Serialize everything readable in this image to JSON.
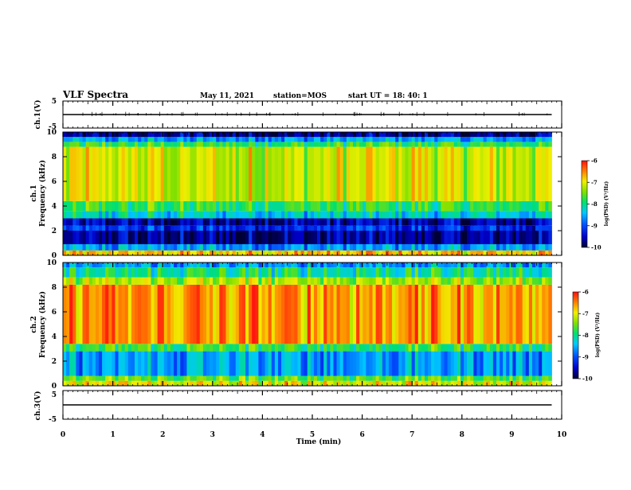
{
  "header": {
    "title": "VLF Spectra",
    "date": "May 11, 2021",
    "station": "station=MOS",
    "start_ut": "start  UT =   18: 40: 1"
  },
  "chart_data": [
    {
      "type": "line",
      "panel": "ch1-waveform",
      "ylabel": "ch.1(V)",
      "yticks": [
        "5",
        "-5"
      ],
      "ylim": [
        -5,
        5
      ],
      "x": [
        0,
        9.8
      ],
      "values": [
        0,
        0
      ]
    },
    {
      "type": "heatmap",
      "panel": "ch1-spectrogram",
      "ylabel_line1": "ch.1",
      "ylabel_line2": "Frequency (kHz)",
      "yticks": [
        "0",
        "2",
        "4",
        "6",
        "8",
        "10"
      ],
      "ylim": [
        0,
        10
      ],
      "xlim": [
        0,
        9.8
      ],
      "colorbar": {
        "ticks": [
          "-6",
          "-7",
          "-8",
          "-9",
          "-10"
        ],
        "label": "log(PSD) (V²/Hz)",
        "range": [
          -10,
          -6
        ]
      },
      "bands": [
        {
          "from_khz": 0.0,
          "to_khz": 0.4,
          "level": -6.8
        },
        {
          "from_khz": 0.4,
          "to_khz": 0.9,
          "level": -8.6
        },
        {
          "from_khz": 0.9,
          "to_khz": 2.0,
          "level": -9.7
        },
        {
          "from_khz": 2.0,
          "to_khz": 2.4,
          "level": -9.2
        },
        {
          "from_khz": 2.4,
          "to_khz": 3.0,
          "level": -9.6
        },
        {
          "from_khz": 3.0,
          "to_khz": 3.6,
          "level": -8.3
        },
        {
          "from_khz": 3.6,
          "to_khz": 4.4,
          "level": -7.8
        },
        {
          "from_khz": 4.4,
          "to_khz": 8.8,
          "level": -7.1
        },
        {
          "from_khz": 8.8,
          "to_khz": 9.2,
          "level": -7.8
        },
        {
          "from_khz": 9.2,
          "to_khz": 9.6,
          "level": -8.6
        },
        {
          "from_khz": 9.6,
          "to_khz": 10.0,
          "level": -9.7
        }
      ]
    },
    {
      "type": "heatmap",
      "panel": "ch2-spectrogram",
      "ylabel_line1": "ch.2",
      "ylabel_line2": "Frequency (kHz)",
      "yticks": [
        "0",
        "2",
        "4",
        "6",
        "8",
        "10"
      ],
      "ylim": [
        0,
        10
      ],
      "xlim": [
        0,
        9.8
      ],
      "colorbar": {
        "ticks": [
          "-6",
          "-7",
          "-8",
          "-9",
          "-10"
        ],
        "label": "log(PSD) (V²/Hz)",
        "range": [
          -10,
          -6
        ]
      },
      "bands": [
        {
          "from_khz": 0.0,
          "to_khz": 0.4,
          "level": -7.0
        },
        {
          "from_khz": 0.4,
          "to_khz": 0.8,
          "level": -7.6
        },
        {
          "from_khz": 0.8,
          "to_khz": 2.8,
          "level": -8.6
        },
        {
          "from_khz": 2.8,
          "to_khz": 3.4,
          "level": -7.8
        },
        {
          "from_khz": 3.4,
          "to_khz": 8.2,
          "level": -6.6
        },
        {
          "from_khz": 8.2,
          "to_khz": 8.8,
          "level": -7.3
        },
        {
          "from_khz": 8.8,
          "to_khz": 9.6,
          "level": -8.0
        },
        {
          "from_khz": 9.6,
          "to_khz": 10.0,
          "level": -8.6
        }
      ]
    },
    {
      "type": "line",
      "panel": "ch3-waveform",
      "ylabel": "ch.3(V)",
      "yticks": [
        "5",
        "-5"
      ],
      "ylim": [
        -5,
        5
      ],
      "x": [
        0,
        9.8
      ],
      "values": [
        0,
        0
      ]
    }
  ],
  "xaxis": {
    "label": "Time  (min)",
    "ticks": [
      "0",
      "1",
      "2",
      "3",
      "4",
      "5",
      "6",
      "7",
      "8",
      "9",
      "10"
    ],
    "xlim": [
      0,
      10
    ]
  }
}
